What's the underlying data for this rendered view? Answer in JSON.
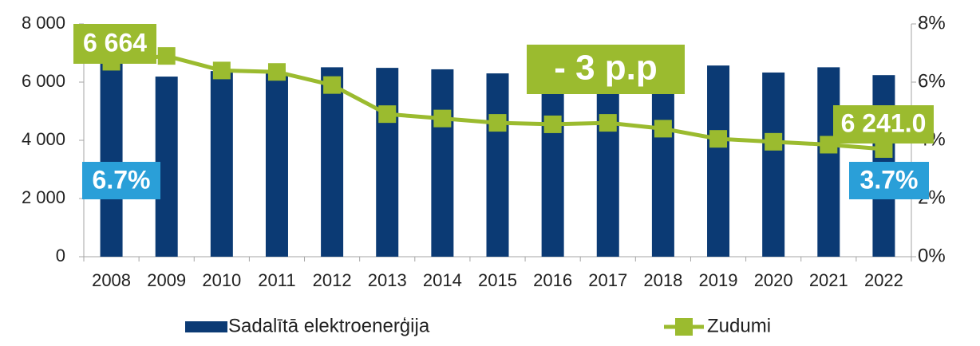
{
  "chart_data": {
    "type": "bar_line",
    "categories": [
      "2008",
      "2009",
      "2010",
      "2011",
      "2012",
      "2013",
      "2014",
      "2015",
      "2016",
      "2017",
      "2018",
      "2019",
      "2020",
      "2021",
      "2022"
    ],
    "series": [
      {
        "name": "Sadalītā elektroenerģija",
        "color": "#0b3a74",
        "type": "bar",
        "values": [
          6664,
          6190,
          6380,
          6330,
          6510,
          6490,
          6440,
          6300,
          6230,
          6280,
          6320,
          6570,
          6330,
          6510,
          6241
        ]
      },
      {
        "name": "Zudumi",
        "color": "#9bbb2f",
        "type": "line",
        "axis": "y2",
        "values": [
          6.7,
          6.9,
          6.4,
          6.35,
          5.9,
          4.9,
          4.75,
          4.6,
          4.55,
          4.6,
          4.4,
          4.05,
          3.95,
          3.85,
          3.7
        ]
      }
    ],
    "ylim": [
      0,
      8000
    ],
    "yticks": [
      0,
      {
        "value": 2000,
        "label": "2 000"
      },
      {
        "value": 4000,
        "label": "4 000"
      },
      {
        "value": 6000,
        "label": "6 000"
      },
      {
        "value": 8000,
        "label": "8 000"
      }
    ],
    "y2lim": [
      0,
      8
    ],
    "y2ticks": [
      {
        "value": 0,
        "label": "0%"
      },
      {
        "value": 2,
        "label": "2%"
      },
      {
        "value": 4,
        "label": "4%"
      },
      {
        "value": 6,
        "label": "6%"
      },
      {
        "value": 8,
        "label": "8%"
      }
    ],
    "legend": "bottom",
    "annotations": [
      "6 664",
      "- 3 p.p",
      "6 241.0",
      "6.7%",
      "3.7%"
    ]
  }
}
